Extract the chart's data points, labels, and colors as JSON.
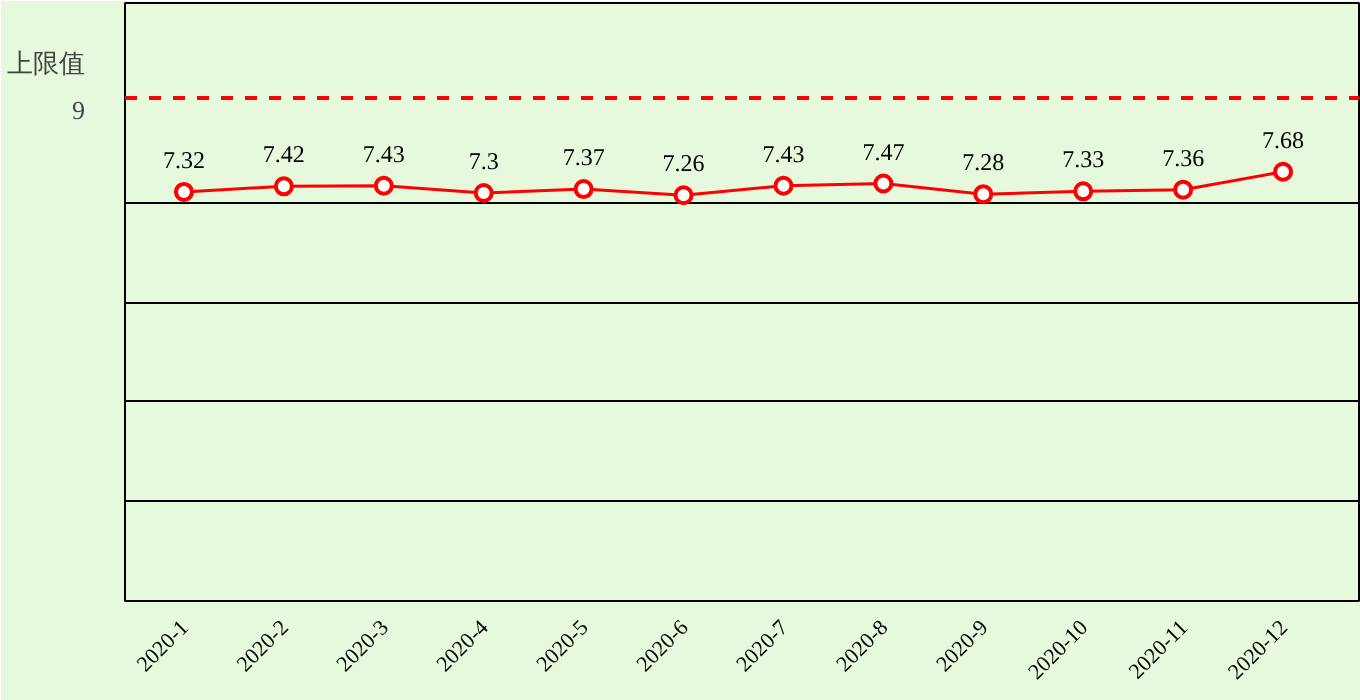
{
  "chart_data": {
    "type": "line",
    "ylabel": "上限值",
    "categories": [
      "2020-1",
      "2020-2",
      "2020-3",
      "2020-4",
      "2020-5",
      "2020-6",
      "2020-7",
      "2020-8",
      "2020-9",
      "2020-10",
      "2020-11",
      "2020-12"
    ],
    "series": [
      {
        "color": "#ff0000",
        "values": [
          7.32,
          7.42,
          7.43,
          7.3,
          7.37,
          7.26,
          7.43,
          7.47,
          7.28,
          7.33,
          7.36,
          7.68
        ]
      }
    ],
    "ylim": [
      0,
      10.7
    ],
    "yticks": [
      {
        "value": 1.78,
        "label": null
      },
      {
        "value": 3.57,
        "label": null
      },
      {
        "value": 5.35,
        "label": null
      },
      {
        "value": 7.13,
        "label": null
      }
    ],
    "ref_lines": [
      {
        "axis": "y",
        "value": 9,
        "label": "9",
        "color": "#ff0000",
        "line_style": "dashed"
      }
    ],
    "grid": "y",
    "tick_labels": "x",
    "marker": "circle",
    "line_style": "solid",
    "data_labels": true
  }
}
